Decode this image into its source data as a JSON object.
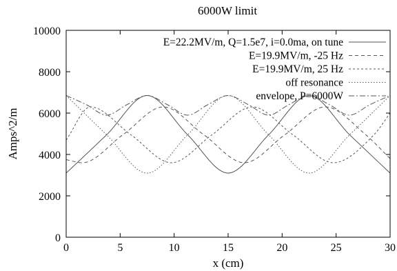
{
  "chart_data": {
    "type": "line",
    "title": "6000W limit",
    "xlabel": "x (cm)",
    "ylabel": "Amps^2/m",
    "xlim": [
      0,
      30
    ],
    "ylim": [
      0,
      10000
    ],
    "xticks": [
      0,
      5,
      10,
      15,
      20,
      25,
      30
    ],
    "yticks": [
      0,
      2000,
      4000,
      6000,
      8000,
      10000
    ],
    "xtick_labels": [
      "0",
      "5",
      "10",
      "15",
      "20",
      "25",
      "30"
    ],
    "ytick_labels": [
      "0",
      "2000",
      "4000",
      "6000",
      "8000",
      "10000"
    ],
    "grid": false,
    "legend_position": "top-right",
    "series": [
      {
        "name": "E=22.2MV/m, Q=1.5e7, i=0.0ma, on tune",
        "style": "solid",
        "color": "#555555",
        "x": [
          0,
          3.75,
          7.5,
          11.25,
          15,
          18.75,
          22.5,
          26.25,
          30
        ],
        "y": [
          3100,
          4950,
          6850,
          4950,
          3100,
          4950,
          6850,
          4950,
          3100
        ]
      },
      {
        "name": "E=19.9MV/m, -25 Hz",
        "style": "dashed",
        "color": "#555555",
        "x": [
          0,
          1.5,
          5.25,
          9,
          12.75,
          16.5,
          20.25,
          24,
          27.75,
          30
        ],
        "y": [
          3750,
          3600,
          4950,
          6300,
          4950,
          3600,
          4950,
          6300,
          4950,
          3800
        ]
      },
      {
        "name": "E=19.9MV/m, 25 Hz",
        "style": "dotted-dashed",
        "color": "#555555",
        "x": [
          0,
          2.25,
          6,
          9.75,
          13.5,
          17.25,
          21,
          24.75,
          28.5,
          30
        ],
        "y": [
          4700,
          6300,
          4950,
          3600,
          4950,
          6300,
          4950,
          3600,
          4950,
          6000
        ]
      },
      {
        "name": "off resonance",
        "style": "dotted",
        "color": "#555555",
        "x": [
          0,
          3.75,
          7.5,
          11.25,
          15,
          18.75,
          22.5,
          26.25,
          30
        ],
        "y": [
          6850,
          4950,
          3100,
          4950,
          6850,
          4950,
          3100,
          4950,
          6850
        ]
      },
      {
        "name": "envelope, P=6000W",
        "style": "dash-dot",
        "color": "#555555",
        "x": [
          0,
          1.9,
          3.75,
          5.6,
          7.5,
          9.4,
          11.25,
          13.1,
          15,
          16.9,
          18.75,
          20.6,
          22.5,
          24.4,
          26.25,
          28.1,
          30
        ],
        "y": [
          6850,
          6400,
          5900,
          6400,
          6850,
          6400,
          5900,
          6400,
          6850,
          6400,
          5900,
          6400,
          6850,
          6400,
          5900,
          6400,
          6850
        ]
      }
    ]
  }
}
